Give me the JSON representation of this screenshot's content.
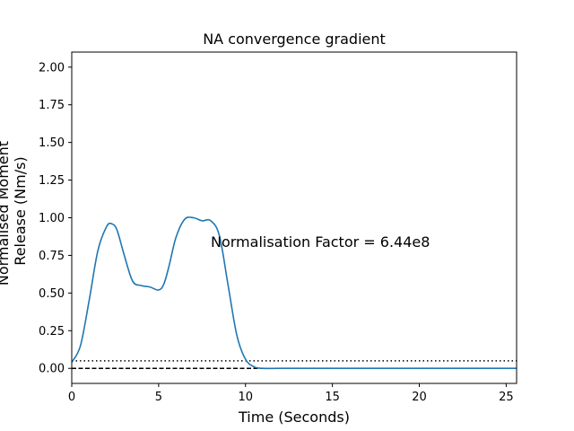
{
  "chart_data": {
    "type": "line",
    "title": "NA convergence gradient",
    "xlabel": "Time (Seconds)",
    "ylabel_lines": [
      "Normalised Moment",
      "Release (Nm/s)"
    ],
    "xlim": [
      0,
      25.6
    ],
    "ylim": [
      -0.1,
      2.1
    ],
    "xticks": [
      0,
      5,
      10,
      15,
      20,
      25
    ],
    "yticks": [
      0.0,
      0.25,
      0.5,
      0.75,
      1.0,
      1.25,
      1.5,
      1.75,
      2.0
    ],
    "xtick_labels": [
      "0",
      "5",
      "10",
      "15",
      "20",
      "25"
    ],
    "ytick_labels": [
      "0.00",
      "0.25",
      "0.50",
      "0.75",
      "1.00",
      "1.25",
      "1.50",
      "1.75",
      "2.00"
    ],
    "grid": false,
    "annotation": "Normalisation Factor = 6.44e8",
    "series": [
      {
        "color": "#1f77b4",
        "x": [
          0,
          0.5,
          1.0,
          1.5,
          2.0,
          2.3,
          2.6,
          3.0,
          3.5,
          4.0,
          4.5,
          5.0,
          5.3,
          5.6,
          6.0,
          6.5,
          7.0,
          7.5,
          8.0,
          8.5,
          9.0,
          9.5,
          10.0,
          10.5,
          11.0,
          12.0,
          14.0,
          18.0,
          22.0,
          25.6
        ],
        "y": [
          0.04,
          0.15,
          0.45,
          0.78,
          0.94,
          0.96,
          0.92,
          0.76,
          0.58,
          0.55,
          0.54,
          0.52,
          0.56,
          0.68,
          0.87,
          0.99,
          1.0,
          0.98,
          0.98,
          0.88,
          0.55,
          0.22,
          0.06,
          0.01,
          0.0,
          0.0,
          0.0,
          0.0,
          0.0,
          0.0
        ]
      }
    ],
    "hlines": [
      {
        "y": 0.05,
        "style": "dotted",
        "color": "#000000"
      },
      {
        "y": 0.0,
        "style": "dashed",
        "color": "#000000"
      }
    ]
  }
}
